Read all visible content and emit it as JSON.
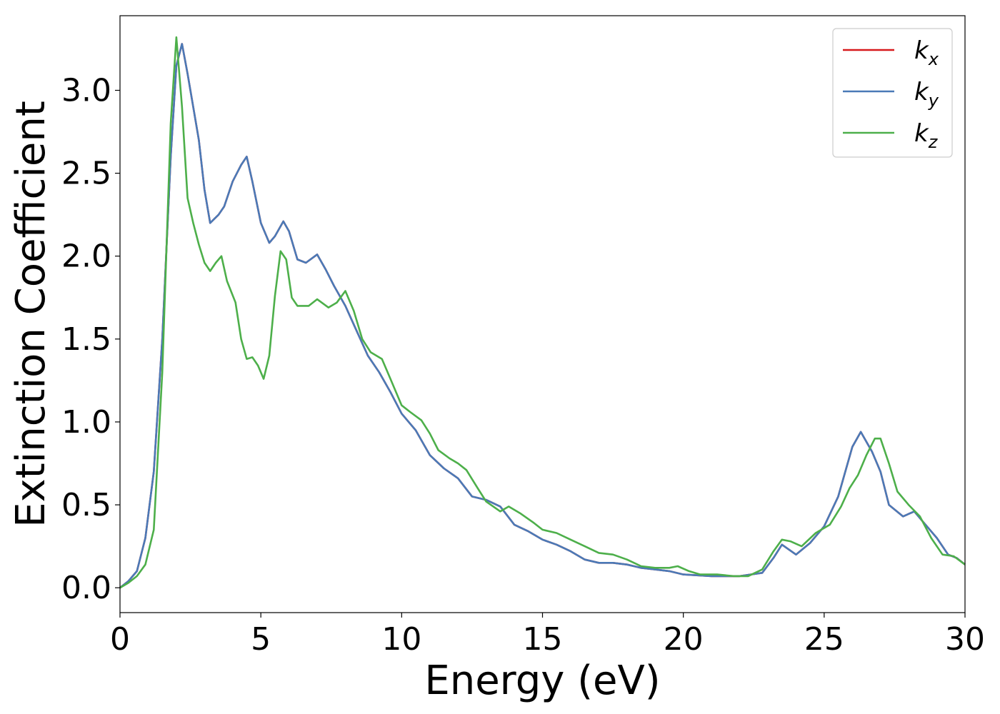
{
  "chart_data": {
    "type": "line",
    "xlabel": "Energy (eV)",
    "ylabel": "Extinction Coefficient",
    "xlim": [
      0,
      30
    ],
    "ylim": [
      -0.15,
      3.45
    ],
    "x_ticks": [
      "0",
      "5",
      "10",
      "15",
      "20",
      "25",
      "30"
    ],
    "y_ticks": [
      "0.0",
      "0.5",
      "1.0",
      "1.5",
      "2.0",
      "2.5",
      "3.0"
    ],
    "grid": false,
    "legend_position": "top-right",
    "series": [
      {
        "name": "kx",
        "label_base": "k",
        "label_sub": "x",
        "color": "#d7191c",
        "points": [
          [
            0,
            0.0
          ],
          [
            0.3,
            0.04
          ],
          [
            0.6,
            0.1
          ],
          [
            0.9,
            0.3
          ],
          [
            1.2,
            0.7
          ],
          [
            1.5,
            1.5
          ],
          [
            1.8,
            2.6
          ],
          [
            2.0,
            3.15
          ],
          [
            2.2,
            3.28
          ],
          [
            2.4,
            3.1
          ],
          [
            2.6,
            2.9
          ],
          [
            2.8,
            2.7
          ],
          [
            3.0,
            2.4
          ],
          [
            3.2,
            2.2
          ],
          [
            3.5,
            2.25
          ],
          [
            3.7,
            2.3
          ],
          [
            4.0,
            2.45
          ],
          [
            4.3,
            2.55
          ],
          [
            4.5,
            2.6
          ],
          [
            4.7,
            2.45
          ],
          [
            5.0,
            2.2
          ],
          [
            5.3,
            2.08
          ],
          [
            5.5,
            2.12
          ],
          [
            5.8,
            2.21
          ],
          [
            6.0,
            2.15
          ],
          [
            6.3,
            1.98
          ],
          [
            6.6,
            1.96
          ],
          [
            7.0,
            2.01
          ],
          [
            7.3,
            1.92
          ],
          [
            7.6,
            1.82
          ],
          [
            8.0,
            1.7
          ],
          [
            8.4,
            1.55
          ],
          [
            8.8,
            1.4
          ],
          [
            9.2,
            1.3
          ],
          [
            9.6,
            1.18
          ],
          [
            10.0,
            1.05
          ],
          [
            10.5,
            0.95
          ],
          [
            11.0,
            0.8
          ],
          [
            11.5,
            0.72
          ],
          [
            12.0,
            0.66
          ],
          [
            12.5,
            0.55
          ],
          [
            13.0,
            0.53
          ],
          [
            13.5,
            0.49
          ],
          [
            14.0,
            0.38
          ],
          [
            14.5,
            0.34
          ],
          [
            15.0,
            0.29
          ],
          [
            15.5,
            0.26
          ],
          [
            16.0,
            0.22
          ],
          [
            16.5,
            0.17
          ],
          [
            17.0,
            0.15
          ],
          [
            17.5,
            0.15
          ],
          [
            18.0,
            0.14
          ],
          [
            18.5,
            0.12
          ],
          [
            19.0,
            0.11
          ],
          [
            19.5,
            0.1
          ],
          [
            20.0,
            0.08
          ],
          [
            21.0,
            0.07
          ],
          [
            22.0,
            0.07
          ],
          [
            22.8,
            0.09
          ],
          [
            23.2,
            0.18
          ],
          [
            23.5,
            0.26
          ],
          [
            24.0,
            0.2
          ],
          [
            24.5,
            0.27
          ],
          [
            25.0,
            0.37
          ],
          [
            25.5,
            0.55
          ],
          [
            26.0,
            0.85
          ],
          [
            26.3,
            0.94
          ],
          [
            26.7,
            0.82
          ],
          [
            27.0,
            0.7
          ],
          [
            27.3,
            0.5
          ],
          [
            27.8,
            0.43
          ],
          [
            28.2,
            0.46
          ],
          [
            28.5,
            0.4
          ],
          [
            29.0,
            0.3
          ],
          [
            29.4,
            0.2
          ],
          [
            29.7,
            0.18
          ],
          [
            30.0,
            0.14
          ]
        ]
      },
      {
        "name": "ky",
        "label_base": "k",
        "label_sub": "y",
        "color": "#4a7ab7",
        "points": [
          [
            0,
            0.0
          ],
          [
            0.3,
            0.04
          ],
          [
            0.6,
            0.1
          ],
          [
            0.9,
            0.3
          ],
          [
            1.2,
            0.7
          ],
          [
            1.5,
            1.5
          ],
          [
            1.8,
            2.6
          ],
          [
            2.0,
            3.15
          ],
          [
            2.2,
            3.28
          ],
          [
            2.4,
            3.1
          ],
          [
            2.6,
            2.9
          ],
          [
            2.8,
            2.7
          ],
          [
            3.0,
            2.4
          ],
          [
            3.2,
            2.2
          ],
          [
            3.5,
            2.25
          ],
          [
            3.7,
            2.3
          ],
          [
            4.0,
            2.45
          ],
          [
            4.3,
            2.55
          ],
          [
            4.5,
            2.6
          ],
          [
            4.7,
            2.45
          ],
          [
            5.0,
            2.2
          ],
          [
            5.3,
            2.08
          ],
          [
            5.5,
            2.12
          ],
          [
            5.8,
            2.21
          ],
          [
            6.0,
            2.15
          ],
          [
            6.3,
            1.98
          ],
          [
            6.6,
            1.96
          ],
          [
            7.0,
            2.01
          ],
          [
            7.3,
            1.92
          ],
          [
            7.6,
            1.82
          ],
          [
            8.0,
            1.7
          ],
          [
            8.4,
            1.55
          ],
          [
            8.8,
            1.4
          ],
          [
            9.2,
            1.3
          ],
          [
            9.6,
            1.18
          ],
          [
            10.0,
            1.05
          ],
          [
            10.5,
            0.95
          ],
          [
            11.0,
            0.8
          ],
          [
            11.5,
            0.72
          ],
          [
            12.0,
            0.66
          ],
          [
            12.5,
            0.55
          ],
          [
            13.0,
            0.53
          ],
          [
            13.5,
            0.49
          ],
          [
            14.0,
            0.38
          ],
          [
            14.5,
            0.34
          ],
          [
            15.0,
            0.29
          ],
          [
            15.5,
            0.26
          ],
          [
            16.0,
            0.22
          ],
          [
            16.5,
            0.17
          ],
          [
            17.0,
            0.15
          ],
          [
            17.5,
            0.15
          ],
          [
            18.0,
            0.14
          ],
          [
            18.5,
            0.12
          ],
          [
            19.0,
            0.11
          ],
          [
            19.5,
            0.1
          ],
          [
            20.0,
            0.08
          ],
          [
            21.0,
            0.07
          ],
          [
            22.0,
            0.07
          ],
          [
            22.8,
            0.09
          ],
          [
            23.2,
            0.18
          ],
          [
            23.5,
            0.26
          ],
          [
            24.0,
            0.2
          ],
          [
            24.5,
            0.27
          ],
          [
            25.0,
            0.37
          ],
          [
            25.5,
            0.55
          ],
          [
            26.0,
            0.85
          ],
          [
            26.3,
            0.94
          ],
          [
            26.7,
            0.82
          ],
          [
            27.0,
            0.7
          ],
          [
            27.3,
            0.5
          ],
          [
            27.8,
            0.43
          ],
          [
            28.2,
            0.46
          ],
          [
            28.5,
            0.4
          ],
          [
            29.0,
            0.3
          ],
          [
            29.4,
            0.2
          ],
          [
            29.7,
            0.18
          ],
          [
            30.0,
            0.14
          ]
        ]
      },
      {
        "name": "kz",
        "label_base": "k",
        "label_sub": "z",
        "color": "#4daf4a",
        "points": [
          [
            0,
            0.0
          ],
          [
            0.3,
            0.03
          ],
          [
            0.6,
            0.07
          ],
          [
            0.9,
            0.14
          ],
          [
            1.2,
            0.35
          ],
          [
            1.5,
            1.3
          ],
          [
            1.8,
            2.8
          ],
          [
            2.0,
            3.32
          ],
          [
            2.2,
            2.9
          ],
          [
            2.4,
            2.35
          ],
          [
            2.6,
            2.2
          ],
          [
            2.8,
            2.07
          ],
          [
            3.0,
            1.96
          ],
          [
            3.2,
            1.91
          ],
          [
            3.4,
            1.96
          ],
          [
            3.6,
            2.0
          ],
          [
            3.8,
            1.85
          ],
          [
            4.1,
            1.72
          ],
          [
            4.3,
            1.5
          ],
          [
            4.5,
            1.38
          ],
          [
            4.7,
            1.39
          ],
          [
            4.9,
            1.34
          ],
          [
            5.1,
            1.26
          ],
          [
            5.3,
            1.4
          ],
          [
            5.5,
            1.76
          ],
          [
            5.7,
            2.03
          ],
          [
            5.9,
            1.98
          ],
          [
            6.1,
            1.75
          ],
          [
            6.3,
            1.7
          ],
          [
            6.7,
            1.7
          ],
          [
            7.0,
            1.74
          ],
          [
            7.4,
            1.69
          ],
          [
            7.7,
            1.72
          ],
          [
            8.0,
            1.79
          ],
          [
            8.3,
            1.67
          ],
          [
            8.6,
            1.5
          ],
          [
            8.9,
            1.42
          ],
          [
            9.3,
            1.38
          ],
          [
            9.6,
            1.26
          ],
          [
            10.0,
            1.1
          ],
          [
            10.3,
            1.06
          ],
          [
            10.7,
            1.01
          ],
          [
            11.0,
            0.93
          ],
          [
            11.3,
            0.83
          ],
          [
            11.7,
            0.78
          ],
          [
            12.0,
            0.75
          ],
          [
            12.3,
            0.71
          ],
          [
            12.7,
            0.6
          ],
          [
            13.0,
            0.52
          ],
          [
            13.5,
            0.46
          ],
          [
            13.8,
            0.49
          ],
          [
            14.2,
            0.45
          ],
          [
            14.7,
            0.39
          ],
          [
            15.0,
            0.35
          ],
          [
            15.5,
            0.33
          ],
          [
            16.0,
            0.29
          ],
          [
            16.5,
            0.25
          ],
          [
            17.0,
            0.21
          ],
          [
            17.5,
            0.2
          ],
          [
            18.0,
            0.17
          ],
          [
            18.5,
            0.13
          ],
          [
            19.0,
            0.12
          ],
          [
            19.5,
            0.12
          ],
          [
            19.8,
            0.13
          ],
          [
            20.2,
            0.1
          ],
          [
            20.6,
            0.08
          ],
          [
            21.2,
            0.08
          ],
          [
            21.8,
            0.07
          ],
          [
            22.3,
            0.07
          ],
          [
            22.8,
            0.11
          ],
          [
            23.2,
            0.22
          ],
          [
            23.5,
            0.29
          ],
          [
            23.8,
            0.28
          ],
          [
            24.2,
            0.25
          ],
          [
            24.7,
            0.33
          ],
          [
            25.2,
            0.38
          ],
          [
            25.6,
            0.49
          ],
          [
            25.9,
            0.6
          ],
          [
            26.2,
            0.68
          ],
          [
            26.5,
            0.8
          ],
          [
            26.8,
            0.9
          ],
          [
            27.0,
            0.9
          ],
          [
            27.3,
            0.75
          ],
          [
            27.6,
            0.58
          ],
          [
            28.0,
            0.5
          ],
          [
            28.4,
            0.43
          ],
          [
            28.8,
            0.3
          ],
          [
            29.2,
            0.2
          ],
          [
            29.6,
            0.19
          ],
          [
            30.0,
            0.14
          ]
        ]
      }
    ]
  }
}
